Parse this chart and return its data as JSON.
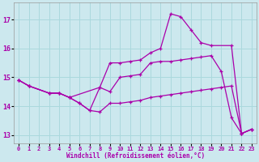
{
  "xlabel": "Windchill (Refroidissement éolien,°C)",
  "bg_color": "#cce8ee",
  "line_color": "#aa00aa",
  "grid_color": "#aad8dd",
  "xlim": [
    -0.5,
    23.5
  ],
  "ylim": [
    12.7,
    17.6
  ],
  "yticks": [
    13,
    14,
    15,
    16,
    17
  ],
  "xticks": [
    0,
    1,
    2,
    3,
    4,
    5,
    6,
    7,
    8,
    9,
    10,
    11,
    12,
    13,
    14,
    15,
    16,
    17,
    18,
    19,
    20,
    21,
    22,
    23
  ],
  "series": [
    {
      "x": [
        0,
        1,
        3,
        4,
        5,
        8,
        9,
        10,
        11,
        12,
        13,
        14,
        15,
        16,
        17,
        18,
        19,
        21,
        22,
        23
      ],
      "y": [
        14.9,
        14.7,
        14.45,
        14.45,
        14.3,
        14.65,
        15.5,
        15.5,
        15.55,
        15.6,
        15.85,
        16.0,
        17.2,
        17.1,
        16.65,
        16.2,
        16.1,
        16.1,
        13.05,
        13.2
      ]
    },
    {
      "x": [
        0,
        1,
        3,
        4,
        5,
        6,
        7,
        8,
        9,
        10,
        11,
        12,
        13,
        14,
        15,
        16,
        17,
        18,
        19,
        20,
        21,
        22,
        23
      ],
      "y": [
        14.9,
        14.7,
        14.45,
        14.45,
        14.3,
        14.1,
        13.85,
        14.65,
        14.5,
        15.0,
        15.05,
        15.1,
        15.5,
        15.55,
        15.55,
        15.6,
        15.65,
        15.7,
        15.75,
        15.2,
        13.6,
        13.05,
        13.2
      ]
    },
    {
      "x": [
        0,
        1,
        3,
        4,
        5,
        6,
        7,
        8,
        9,
        10,
        11,
        12,
        13,
        14,
        15,
        16,
        17,
        18,
        19,
        20,
        21,
        22,
        23
      ],
      "y": [
        14.9,
        14.7,
        14.45,
        14.45,
        14.3,
        14.1,
        13.85,
        13.8,
        14.1,
        14.1,
        14.15,
        14.2,
        14.3,
        14.35,
        14.4,
        14.45,
        14.5,
        14.55,
        14.6,
        14.65,
        14.7,
        13.05,
        13.2
      ]
    }
  ]
}
